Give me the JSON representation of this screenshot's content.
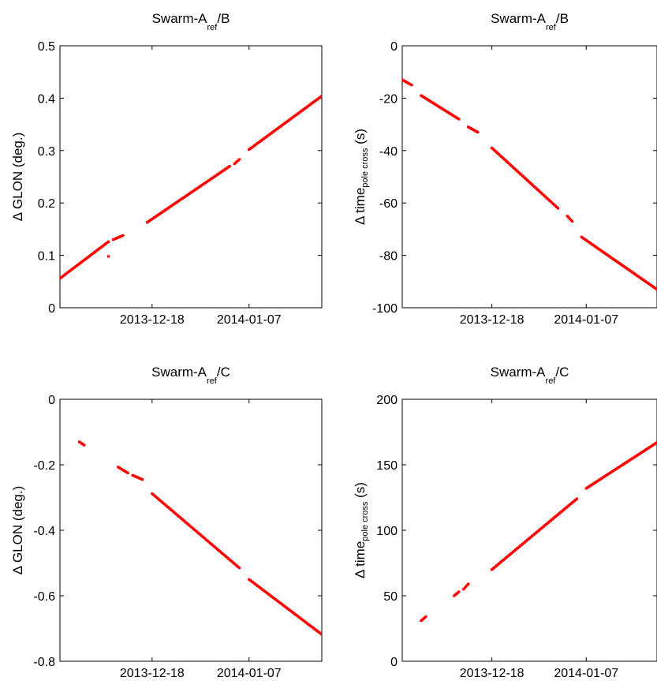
{
  "chart_data": [
    {
      "id": "p1",
      "type": "scatter",
      "title_parts": [
        "Swarm-A",
        "ref",
        "/B"
      ],
      "ylabel_parts": [
        "Δ GLON (deg.)",
        "",
        ""
      ],
      "xlim": [
        "2013-11-29",
        "2014-01-22"
      ],
      "xticks": [
        "2013-12-18",
        "2014-01-07"
      ],
      "ylim": [
        0,
        0.5
      ],
      "yticks": [
        "0",
        "0.1",
        "0.2",
        "0.3",
        "0.4",
        "0.5"
      ],
      "marker_color": "#ff0000",
      "segments": [
        {
          "x": [
            "2013-11-29",
            "2013-12-09"
          ],
          "y": [
            0.056,
            0.126
          ]
        },
        {
          "x": [
            "2013-12-10",
            "2013-12-12"
          ],
          "y": [
            0.13,
            0.138
          ]
        },
        {
          "x": [
            "2013-12-17",
            "2014-01-03"
          ],
          "y": [
            0.163,
            0.27
          ]
        },
        {
          "x": [
            "2014-01-04",
            "2014-01-05"
          ],
          "y": [
            0.275,
            0.283
          ]
        },
        {
          "x": [
            "2014-01-07",
            "2014-01-22"
          ],
          "y": [
            0.302,
            0.404
          ]
        }
      ],
      "points": [
        {
          "x": "2013-12-09",
          "y": 0.098
        }
      ]
    },
    {
      "id": "p2",
      "type": "scatter",
      "title_parts": [
        "Swarm-A",
        "ref",
        "/B"
      ],
      "ylabel_parts": [
        "Δ time",
        "pole cross",
        " (s)"
      ],
      "xlim": [
        "2013-11-29",
        "2014-01-22"
      ],
      "xticks": [
        "2013-12-18",
        "2014-01-07"
      ],
      "ylim": [
        -100,
        0
      ],
      "yticks": [
        "-100",
        "-80",
        "-60",
        "-40",
        "-20",
        "0"
      ],
      "marker_color": "#ff0000",
      "segments": [
        {
          "x": [
            "2013-11-29",
            "2013-12-01"
          ],
          "y": [
            -13,
            -15
          ]
        },
        {
          "x": [
            "2013-12-03",
            "2013-12-11"
          ],
          "y": [
            -19,
            -28
          ]
        },
        {
          "x": [
            "2013-12-13",
            "2013-12-15"
          ],
          "y": [
            -31,
            -33
          ]
        },
        {
          "x": [
            "2013-12-18",
            "2014-01-01"
          ],
          "y": [
            -39,
            -62
          ]
        },
        {
          "x": [
            "2014-01-03",
            "2014-01-04"
          ],
          "y": [
            -65,
            -67
          ]
        },
        {
          "x": [
            "2014-01-06",
            "2014-01-22"
          ],
          "y": [
            -73,
            -93
          ]
        }
      ],
      "points": []
    },
    {
      "id": "p3",
      "type": "scatter",
      "title_parts": [
        "Swarm-A",
        "ref",
        "/C"
      ],
      "ylabel_parts": [
        "Δ GLON (deg.)",
        "",
        ""
      ],
      "xlim": [
        "2013-11-29",
        "2014-01-22"
      ],
      "xticks": [
        "2013-12-18",
        "2014-01-07"
      ],
      "ylim": [
        -0.8,
        0
      ],
      "yticks": [
        "-0.8",
        "-0.6",
        "-0.4",
        "-0.2",
        "0"
      ],
      "marker_color": "#ff0000",
      "segments": [
        {
          "x": [
            "2013-12-03",
            "2013-12-04"
          ],
          "y": [
            -0.13,
            -0.14
          ]
        },
        {
          "x": [
            "2013-12-11",
            "2013-12-13"
          ],
          "y": [
            -0.207,
            -0.225
          ]
        },
        {
          "x": [
            "2013-12-14",
            "2013-12-16"
          ],
          "y": [
            -0.232,
            -0.245
          ]
        },
        {
          "x": [
            "2013-12-18",
            "2014-01-05"
          ],
          "y": [
            -0.288,
            -0.515
          ]
        },
        {
          "x": [
            "2014-01-07",
            "2014-01-22"
          ],
          "y": [
            -0.55,
            -0.718
          ]
        }
      ],
      "points": []
    },
    {
      "id": "p4",
      "type": "scatter",
      "title_parts": [
        "Swarm-A",
        "ref",
        "/C"
      ],
      "ylabel_parts": [
        "Δ time",
        "pole cross",
        " (s)"
      ],
      "xlim": [
        "2013-11-29",
        "2014-01-22"
      ],
      "xticks": [
        "2013-12-18",
        "2014-01-07"
      ],
      "ylim": [
        0,
        200
      ],
      "yticks": [
        "0",
        "50",
        "100",
        "150",
        "200"
      ],
      "marker_color": "#ff0000",
      "segments": [
        {
          "x": [
            "2013-12-03",
            "2013-12-04"
          ],
          "y": [
            31,
            34
          ]
        },
        {
          "x": [
            "2013-12-10",
            "2013-12-11"
          ],
          "y": [
            50,
            53
          ]
        },
        {
          "x": [
            "2013-12-12",
            "2013-12-13"
          ],
          "y": [
            55,
            59
          ]
        },
        {
          "x": [
            "2013-12-18",
            "2014-01-05"
          ],
          "y": [
            70,
            124
          ]
        },
        {
          "x": [
            "2014-01-07",
            "2014-01-22"
          ],
          "y": [
            132,
            167
          ]
        }
      ],
      "points": []
    }
  ]
}
